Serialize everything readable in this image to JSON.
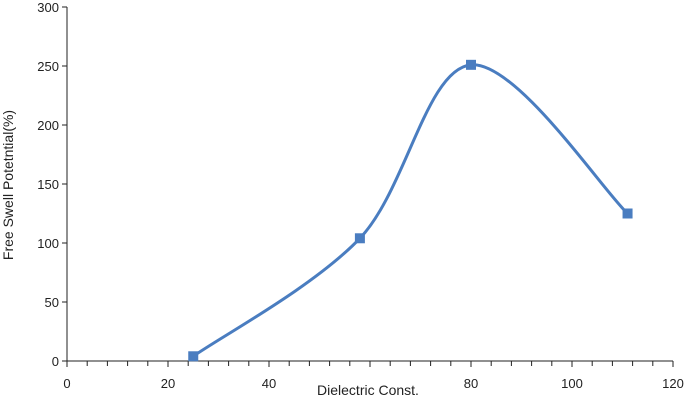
{
  "chart_data": {
    "type": "line",
    "smooth": true,
    "xlabel": "Dielectric Const.",
    "ylabel": "Free Swell Potetntial(%)",
    "xlim": [
      0,
      120
    ],
    "ylim": [
      0,
      300
    ],
    "x_ticks": [
      0,
      20,
      40,
      60,
      80,
      100,
      120
    ],
    "x_tick_labels": [
      "0",
      "20",
      "40",
      "",
      "80",
      "100",
      "120"
    ],
    "x_minor_step": 4,
    "y_ticks": [
      0,
      50,
      100,
      150,
      200,
      250,
      300
    ],
    "grid": false,
    "legend": "none",
    "marker": "square",
    "series": [
      {
        "color": "#4a7dc0",
        "x": [
          25,
          58,
          80,
          111
        ],
        "y": [
          4,
          104,
          251,
          125
        ]
      }
    ]
  }
}
